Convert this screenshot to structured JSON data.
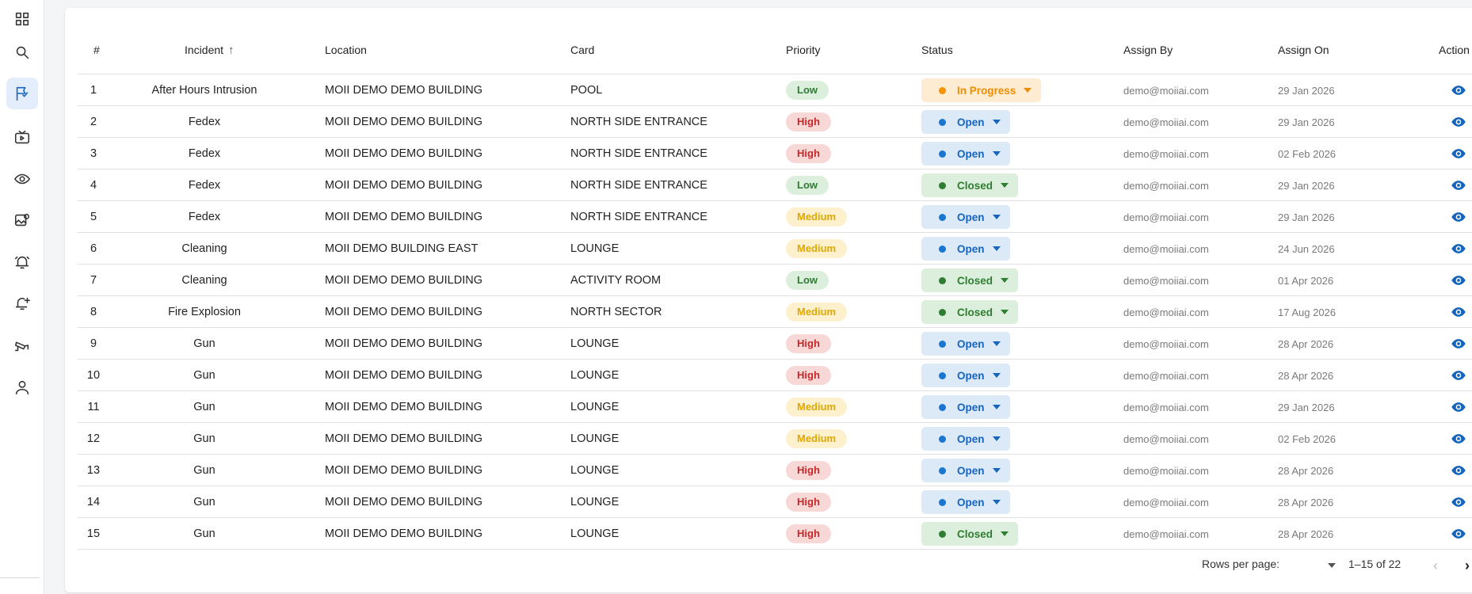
{
  "sidebar": {
    "items": [
      {
        "icon": "dashboard-grid-icon",
        "active": false
      },
      {
        "icon": "search-icon",
        "active": false
      },
      {
        "icon": "incidents-flag-icon",
        "active": true
      },
      {
        "icon": "video-player-icon",
        "active": false
      },
      {
        "icon": "surveillance-eye-icon",
        "active": false
      },
      {
        "icon": "image-settings-icon",
        "active": false
      },
      {
        "icon": "alarm-bell-icon",
        "active": false
      },
      {
        "icon": "add-alert-icon",
        "active": false
      },
      {
        "icon": "cctv-camera-icon",
        "active": false
      },
      {
        "icon": "user-profile-icon",
        "active": false
      }
    ]
  },
  "table": {
    "headers": {
      "num": "#",
      "incident": "Incident",
      "location": "Location",
      "card": "Card",
      "priority": "Priority",
      "status": "Status",
      "assign_by": "Assign By",
      "assign_on": "Assign On",
      "action": "Action"
    },
    "rows": [
      {
        "num": "1",
        "incident": "After Hours Intrusion",
        "location": "MOII DEMO DEMO BUILDING",
        "card": "POOL",
        "priority": "Low",
        "status": "In Progress",
        "assign_by": "demo@moiiai.com",
        "assign_on": "29 Jan 2026"
      },
      {
        "num": "2",
        "incident": "Fedex",
        "location": "MOII DEMO DEMO BUILDING",
        "card": "NORTH SIDE ENTRANCE",
        "priority": "High",
        "status": "Open",
        "assign_by": "demo@moiiai.com",
        "assign_on": "29 Jan 2026"
      },
      {
        "num": "3",
        "incident": "Fedex",
        "location": "MOII DEMO DEMO BUILDING",
        "card": "NORTH SIDE ENTRANCE",
        "priority": "High",
        "status": "Open",
        "assign_by": "demo@moiiai.com",
        "assign_on": "02 Feb 2026"
      },
      {
        "num": "4",
        "incident": "Fedex",
        "location": "MOII DEMO DEMO BUILDING",
        "card": "NORTH SIDE ENTRANCE",
        "priority": "Low",
        "status": "Closed",
        "assign_by": "demo@moiiai.com",
        "assign_on": "29 Jan 2026"
      },
      {
        "num": "5",
        "incident": "Fedex",
        "location": "MOII DEMO DEMO BUILDING",
        "card": "NORTH SIDE ENTRANCE",
        "priority": "Medium",
        "status": "Open",
        "assign_by": "demo@moiiai.com",
        "assign_on": "29 Jan 2026"
      },
      {
        "num": "6",
        "incident": "Cleaning",
        "location": "MOII DEMO BUILDING EAST",
        "card": "LOUNGE",
        "priority": "Medium",
        "status": "Open",
        "assign_by": "demo@moiiai.com",
        "assign_on": "24 Jun 2026"
      },
      {
        "num": "7",
        "incident": "Cleaning",
        "location": "MOII DEMO DEMO BUILDING",
        "card": "ACTIVITY ROOM",
        "priority": "Low",
        "status": "Closed",
        "assign_by": "demo@moiiai.com",
        "assign_on": "01 Apr 2026"
      },
      {
        "num": "8",
        "incident": "Fire Explosion",
        "location": "MOII DEMO DEMO BUILDING",
        "card": "NORTH SECTOR",
        "priority": "Medium",
        "status": "Closed",
        "assign_by": "demo@moiiai.com",
        "assign_on": "17 Aug 2026"
      },
      {
        "num": "9",
        "incident": "Gun",
        "location": "MOII DEMO DEMO BUILDING",
        "card": "LOUNGE",
        "priority": "High",
        "status": "Open",
        "assign_by": "demo@moiiai.com",
        "assign_on": "28 Apr 2026"
      },
      {
        "num": "10",
        "incident": "Gun",
        "location": "MOII DEMO DEMO BUILDING",
        "card": "LOUNGE",
        "priority": "High",
        "status": "Open",
        "assign_by": "demo@moiiai.com",
        "assign_on": "28 Apr 2026"
      },
      {
        "num": "11",
        "incident": "Gun",
        "location": "MOII DEMO DEMO BUILDING",
        "card": "LOUNGE",
        "priority": "Medium",
        "status": "Open",
        "assign_by": "demo@moiiai.com",
        "assign_on": "29 Jan 2026"
      },
      {
        "num": "12",
        "incident": "Gun",
        "location": "MOII DEMO DEMO BUILDING",
        "card": "LOUNGE",
        "priority": "Medium",
        "status": "Open",
        "assign_by": "demo@moiiai.com",
        "assign_on": "02 Feb 2026"
      },
      {
        "num": "13",
        "incident": "Gun",
        "location": "MOII DEMO DEMO BUILDING",
        "card": "LOUNGE",
        "priority": "High",
        "status": "Open",
        "assign_by": "demo@moiiai.com",
        "assign_on": "28 Apr 2026"
      },
      {
        "num": "14",
        "incident": "Gun",
        "location": "MOII DEMO DEMO BUILDING",
        "card": "LOUNGE",
        "priority": "High",
        "status": "Open",
        "assign_by": "demo@moiiai.com",
        "assign_on": "28 Apr 2026"
      },
      {
        "num": "15",
        "incident": "Gun",
        "location": "MOII DEMO DEMO BUILDING",
        "card": "LOUNGE",
        "priority": "High",
        "status": "Closed",
        "assign_by": "demo@moiiai.com",
        "assign_on": "28 Apr 2026"
      }
    ],
    "action_icon": "eye-icon"
  },
  "pagination": {
    "rows_per_page_label": "Rows per page:",
    "rows_per_page_value": "",
    "range": "1–15 of 22"
  },
  "colors": {
    "accent": "#1565c0",
    "open": "#1976d2",
    "closed": "#2e7d32",
    "in_progress": "#f59300",
    "high": "#c62828",
    "medium": "#e0a800",
    "low": "#2e7d32"
  }
}
